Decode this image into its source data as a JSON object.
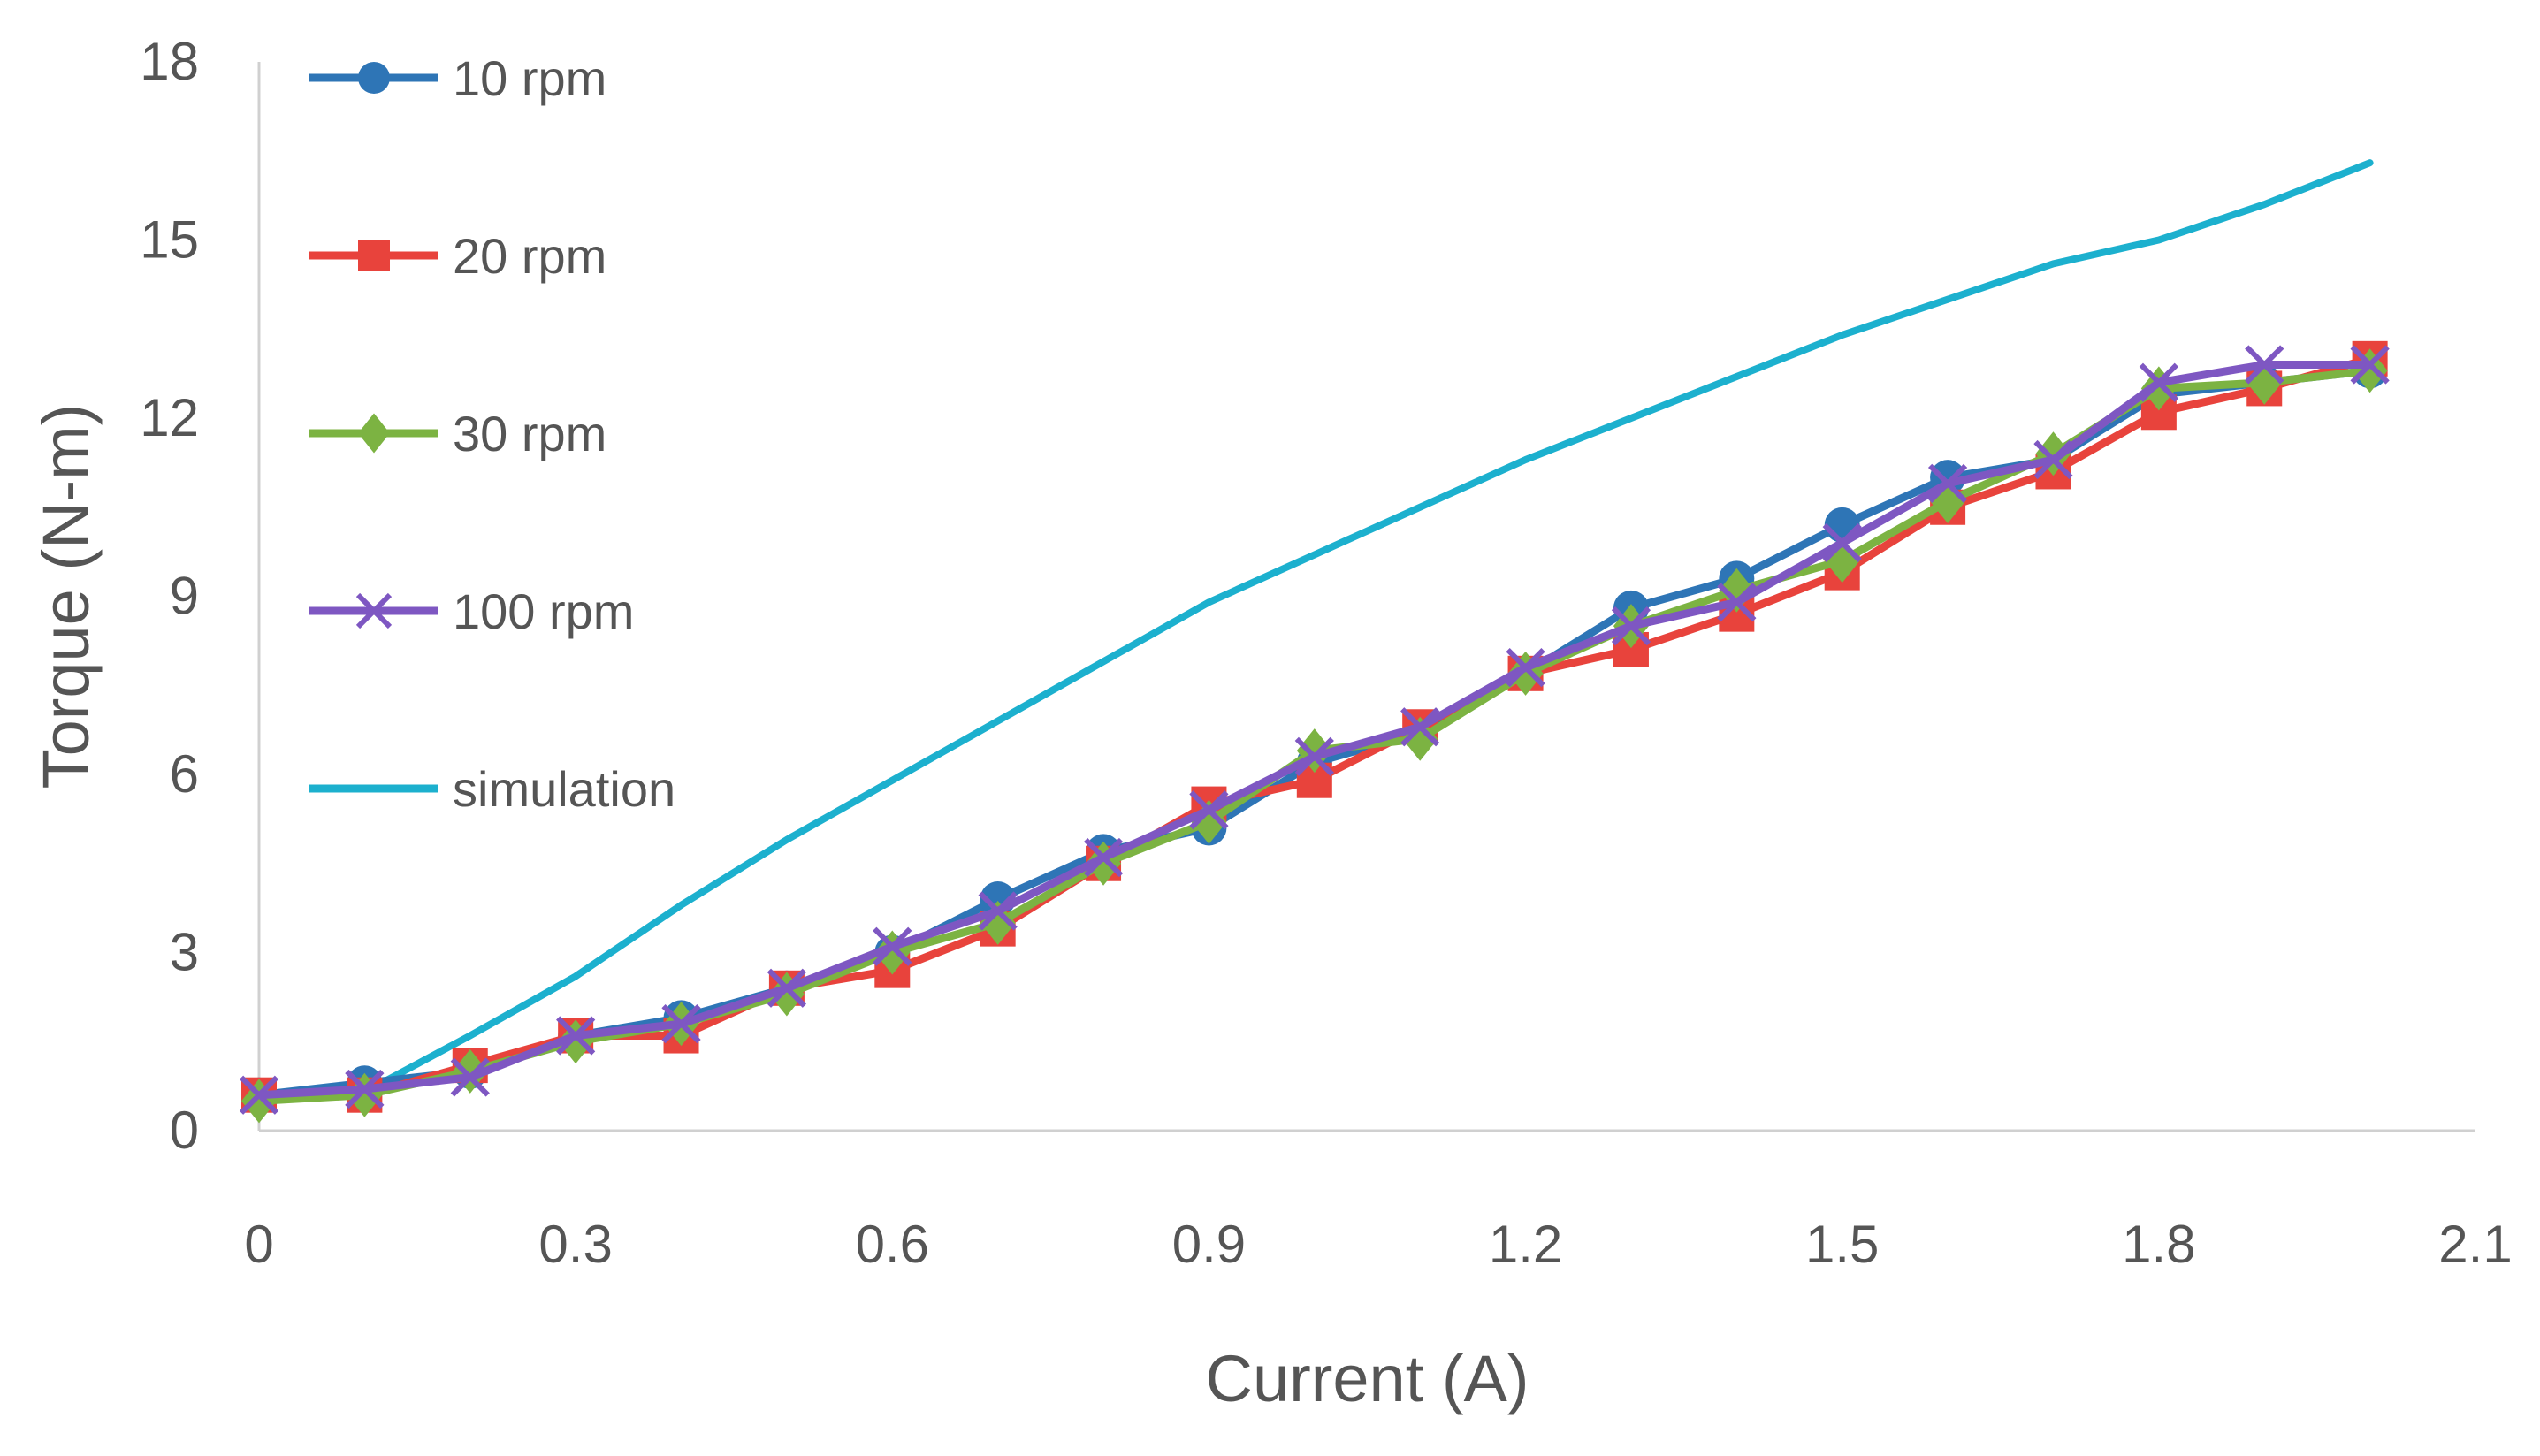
{
  "chart_data": {
    "type": "line",
    "title": "",
    "xlabel": "Current (A)",
    "ylabel": "Torque (N-m)",
    "xlim": [
      0,
      2.1
    ],
    "ylim": [
      0,
      18
    ],
    "xticks": [
      0,
      0.3,
      0.6,
      0.9,
      1.2,
      1.5,
      1.8,
      2.1
    ],
    "xtick_labels": [
      "0",
      "0.3",
      "0.6",
      "0.9",
      "1.2",
      "1.5",
      "1.8",
      "2.1"
    ],
    "yticks": [
      0,
      3,
      6,
      9,
      12,
      15,
      18
    ],
    "ytick_labels": [
      "0",
      "3",
      "6",
      "9",
      "12",
      "15",
      "18"
    ],
    "grid": false,
    "legend_position": "top-left",
    "x": [
      0,
      0.1,
      0.2,
      0.3,
      0.4,
      0.5,
      0.6,
      0.7,
      0.8,
      0.9,
      1.0,
      1.1,
      1.2,
      1.3,
      1.4,
      1.5,
      1.6,
      1.7,
      1.8,
      1.9,
      2.0
    ],
    "series": [
      {
        "name": "10 rpm",
        "color": "#2E75B6",
        "marker": "circle",
        "values": [
          0.6,
          0.8,
          1.0,
          1.6,
          1.9,
          2.4,
          3.0,
          3.9,
          4.7,
          5.1,
          6.2,
          6.7,
          7.7,
          8.8,
          9.3,
          10.2,
          11.0,
          11.3,
          12.4,
          12.6,
          12.8
        ]
      },
      {
        "name": "20 rpm",
        "color": "#E8433C",
        "marker": "square",
        "values": [
          0.6,
          0.6,
          1.1,
          1.6,
          1.6,
          2.4,
          2.7,
          3.4,
          4.5,
          5.5,
          5.9,
          6.8,
          7.7,
          8.1,
          8.7,
          9.4,
          10.5,
          11.1,
          12.1,
          12.5,
          13.0
        ]
      },
      {
        "name": "30 rpm",
        "color": "#7CB342",
        "marker": "diamond",
        "values": [
          0.5,
          0.6,
          1.0,
          1.5,
          1.8,
          2.3,
          3.0,
          3.5,
          4.5,
          5.2,
          6.4,
          6.6,
          7.7,
          8.5,
          9.1,
          9.6,
          10.6,
          11.4,
          12.5,
          12.6,
          12.8
        ]
      },
      {
        "name": "100 rpm",
        "color": "#7E57C2",
        "marker": "x",
        "values": [
          0.6,
          0.7,
          0.9,
          1.6,
          1.8,
          2.4,
          3.1,
          3.7,
          4.6,
          5.4,
          6.3,
          6.8,
          7.8,
          8.5,
          8.9,
          9.9,
          10.9,
          11.3,
          12.6,
          12.9,
          12.9
        ]
      },
      {
        "name": "simulation",
        "color": "#1CB0CE",
        "marker": "none",
        "values": [
          0.5,
          0.65,
          1.6,
          2.6,
          3.8,
          4.9,
          5.9,
          6.9,
          7.9,
          8.9,
          9.7,
          10.5,
          11.3,
          12.0,
          12.7,
          13.4,
          14.0,
          14.6,
          15.0,
          15.6,
          16.3
        ]
      }
    ]
  }
}
